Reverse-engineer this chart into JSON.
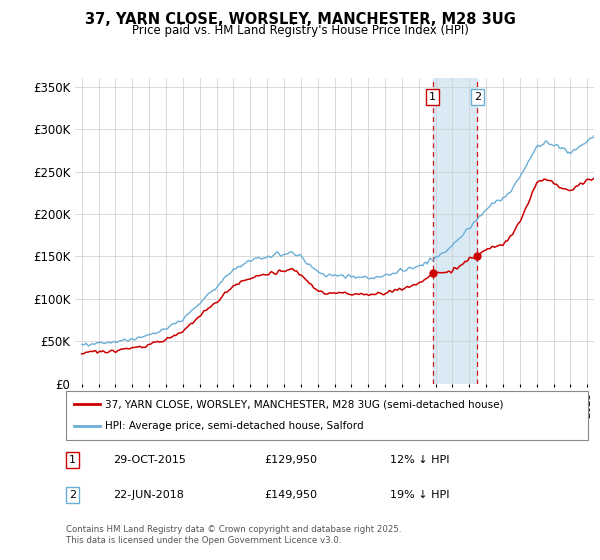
{
  "title": "37, YARN CLOSE, WORSLEY, MANCHESTER, M28 3UG",
  "subtitle": "Price paid vs. HM Land Registry's House Price Index (HPI)",
  "legend_line1": "37, YARN CLOSE, WORSLEY, MANCHESTER, M28 3UG (semi-detached house)",
  "legend_line2": "HPI: Average price, semi-detached house, Salford",
  "sale1_date": "29-OCT-2015",
  "sale1_price": 129950,
  "sale1_hpi": "12% ↓ HPI",
  "sale2_date": "22-JUN-2018",
  "sale2_price": 149950,
  "sale2_hpi": "19% ↓ HPI",
  "footnote": "Contains HM Land Registry data © Crown copyright and database right 2025.\nThis data is licensed under the Open Government Licence v3.0.",
  "hpi_color": "#6aaed6",
  "price_color": "#cc0000",
  "shade_color": "#daeaf5",
  "ylim_min": 0,
  "ylim_max": 360000,
  "yticks": [
    0,
    50000,
    100000,
    150000,
    200000,
    250000,
    300000,
    350000
  ],
  "ytick_labels": [
    "£0",
    "£50K",
    "£100K",
    "£150K",
    "£200K",
    "£250K",
    "£300K",
    "£350K"
  ],
  "sale1_x": 2015.83,
  "sale2_x": 2018.47,
  "sale1_y": 129950,
  "sale2_y": 149950,
  "xmin": 1994.6,
  "xmax": 2025.4
}
